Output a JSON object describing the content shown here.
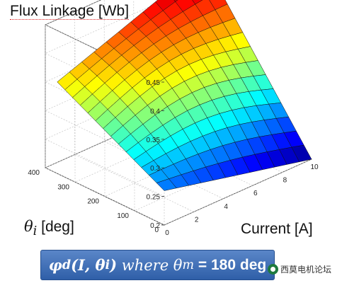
{
  "chart_data": {
    "type": "surface3d",
    "title": "Flux Linkage [Wb]",
    "xlabel": "Current [A]",
    "ylabel_symbol": "θ",
    "ylabel_subscript": "i",
    "ylabel_unit": "[deg]",
    "zlabel": "",
    "xlim": [
      0,
      10
    ],
    "ylim": [
      0,
      400
    ],
    "zlim": [
      0.2,
      0.45
    ],
    "x_ticks": [
      "0",
      "2",
      "4",
      "6",
      "8",
      "10"
    ],
    "y_ticks": [
      "0",
      "100",
      "200",
      "300",
      "400"
    ],
    "z_ticks": [
      "0.2",
      "0.25",
      "0.3",
      "0.35",
      "0.4",
      "0.45"
    ],
    "grid": true,
    "colormap": "jet",
    "corner_values": [
      {
        "current": 0,
        "theta": 360,
        "flux": 0.36
      },
      {
        "current": 10,
        "theta": 360,
        "flux": 0.455
      },
      {
        "current": 0,
        "theta": 0,
        "flux": 0.26
      },
      {
        "current": 10,
        "theta": 0,
        "flux": 0.2
      }
    ]
  },
  "formula": {
    "phi": "φ",
    "phi_sub": "d",
    "args": "(I, θ",
    "args_sub": "i",
    "args_close": ")",
    "where": " where ",
    "theta_m": "θ",
    "theta_m_sub": "m",
    "value": " = 180 deg"
  },
  "watermark": {
    "text": "西莫电机论坛"
  },
  "colors": {
    "box": "#3b6bb5",
    "axis": "#333333",
    "grid": "#bbbbbb"
  }
}
